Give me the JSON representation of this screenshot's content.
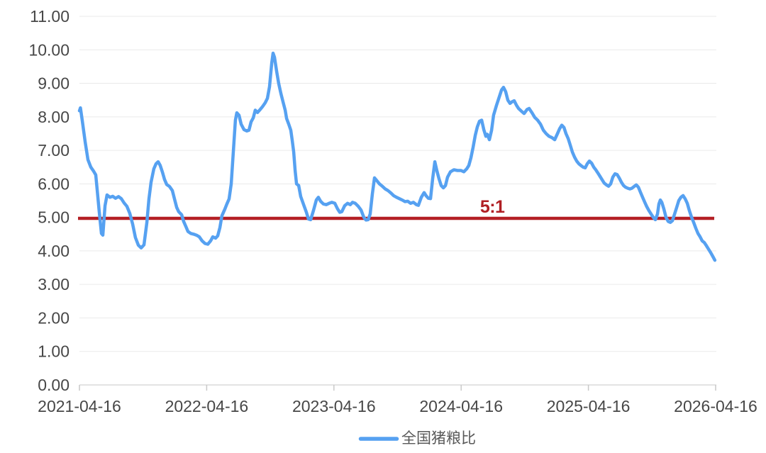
{
  "chart_data": {
    "type": "line",
    "title": "",
    "legend_position": "bottom-center",
    "grid": "horizontal",
    "x_axis": {
      "min": 0,
      "max": 5,
      "tick_positions": [
        0,
        1,
        2,
        3,
        4,
        5
      ],
      "tick_labels": [
        "2021-04-16",
        "2022-04-16",
        "2023-04-16",
        "2024-04-16",
        "2025-04-16",
        "2026-04-16"
      ]
    },
    "y_axis": {
      "min": 0,
      "max": 11,
      "step": 1,
      "tick_labels": [
        "0.00",
        "1.00",
        "2.00",
        "3.00",
        "4.00",
        "5.00",
        "6.00",
        "7.00",
        "8.00",
        "9.00",
        "10.00",
        "11.00"
      ]
    },
    "threshold_line": {
      "label": "5:1",
      "value": 4.97,
      "color": "#B42025",
      "label_color": "#B01F24",
      "label_x_years": 3.245
    },
    "series": [
      {
        "name": "全国猪粮比",
        "color": "#56A1F1",
        "points": [
          [
            0.0,
            8.18
          ],
          [
            0.008,
            8.27
          ],
          [
            0.022,
            7.9
          ],
          [
            0.045,
            7.25
          ],
          [
            0.067,
            6.72
          ],
          [
            0.089,
            6.5
          ],
          [
            0.111,
            6.38
          ],
          [
            0.128,
            6.27
          ],
          [
            0.139,
            5.85
          ],
          [
            0.156,
            5.15
          ],
          [
            0.173,
            4.52
          ],
          [
            0.184,
            4.47
          ],
          [
            0.201,
            5.35
          ],
          [
            0.217,
            5.67
          ],
          [
            0.24,
            5.6
          ],
          [
            0.262,
            5.63
          ],
          [
            0.284,
            5.57
          ],
          [
            0.307,
            5.62
          ],
          [
            0.329,
            5.56
          ],
          [
            0.351,
            5.43
          ],
          [
            0.373,
            5.33
          ],
          [
            0.396,
            5.12
          ],
          [
            0.418,
            4.8
          ],
          [
            0.44,
            4.4
          ],
          [
            0.463,
            4.17
          ],
          [
            0.485,
            4.09
          ],
          [
            0.507,
            4.18
          ],
          [
            0.53,
            4.85
          ],
          [
            0.546,
            5.55
          ],
          [
            0.563,
            6.05
          ],
          [
            0.585,
            6.45
          ],
          [
            0.602,
            6.6
          ],
          [
            0.619,
            6.66
          ],
          [
            0.635,
            6.55
          ],
          [
            0.652,
            6.35
          ],
          [
            0.669,
            6.13
          ],
          [
            0.686,
            5.98
          ],
          [
            0.708,
            5.92
          ],
          [
            0.73,
            5.8
          ],
          [
            0.747,
            5.55
          ],
          [
            0.764,
            5.3
          ],
          [
            0.78,
            5.17
          ],
          [
            0.803,
            5.08
          ],
          [
            0.819,
            4.88
          ],
          [
            0.836,
            4.73
          ],
          [
            0.853,
            4.58
          ],
          [
            0.875,
            4.52
          ],
          [
            0.897,
            4.5
          ],
          [
            0.92,
            4.47
          ],
          [
            0.942,
            4.42
          ],
          [
            0.964,
            4.3
          ],
          [
            0.987,
            4.22
          ],
          [
            1.009,
            4.2
          ],
          [
            1.031,
            4.3
          ],
          [
            1.048,
            4.42
          ],
          [
            1.07,
            4.38
          ],
          [
            1.087,
            4.45
          ],
          [
            1.104,
            4.7
          ],
          [
            1.12,
            5.05
          ],
          [
            1.143,
            5.25
          ],
          [
            1.159,
            5.4
          ],
          [
            1.176,
            5.55
          ],
          [
            1.193,
            6.0
          ],
          [
            1.21,
            7.0
          ],
          [
            1.226,
            7.9
          ],
          [
            1.237,
            8.12
          ],
          [
            1.254,
            8.05
          ],
          [
            1.271,
            7.78
          ],
          [
            1.293,
            7.62
          ],
          [
            1.315,
            7.58
          ],
          [
            1.332,
            7.6
          ],
          [
            1.349,
            7.85
          ],
          [
            1.366,
            7.97
          ],
          [
            1.382,
            8.2
          ],
          [
            1.399,
            8.13
          ],
          [
            1.416,
            8.2
          ],
          [
            1.438,
            8.3
          ],
          [
            1.46,
            8.42
          ],
          [
            1.477,
            8.55
          ],
          [
            1.494,
            8.9
          ],
          [
            1.511,
            9.6
          ],
          [
            1.522,
            9.9
          ],
          [
            1.533,
            9.78
          ],
          [
            1.55,
            9.35
          ],
          [
            1.566,
            9.0
          ],
          [
            1.583,
            8.7
          ],
          [
            1.6,
            8.45
          ],
          [
            1.617,
            8.2
          ],
          [
            1.628,
            7.95
          ],
          [
            1.645,
            7.78
          ],
          [
            1.661,
            7.6
          ],
          [
            1.672,
            7.3
          ],
          [
            1.684,
            6.95
          ],
          [
            1.695,
            6.4
          ],
          [
            1.706,
            6.0
          ],
          [
            1.723,
            5.95
          ],
          [
            1.739,
            5.62
          ],
          [
            1.762,
            5.38
          ],
          [
            1.784,
            5.15
          ],
          [
            1.8,
            4.95
          ],
          [
            1.817,
            4.93
          ],
          [
            1.839,
            5.2
          ],
          [
            1.862,
            5.52
          ],
          [
            1.878,
            5.6
          ],
          [
            1.895,
            5.48
          ],
          [
            1.917,
            5.4
          ],
          [
            1.94,
            5.38
          ],
          [
            1.962,
            5.42
          ],
          [
            1.984,
            5.45
          ],
          [
            2.007,
            5.42
          ],
          [
            2.029,
            5.25
          ],
          [
            2.046,
            5.15
          ],
          [
            2.062,
            5.17
          ],
          [
            2.085,
            5.35
          ],
          [
            2.107,
            5.42
          ],
          [
            2.129,
            5.38
          ],
          [
            2.146,
            5.45
          ],
          [
            2.168,
            5.42
          ],
          [
            2.191,
            5.33
          ],
          [
            2.213,
            5.22
          ],
          [
            2.235,
            5.0
          ],
          [
            2.252,
            4.92
          ],
          [
            2.269,
            4.93
          ],
          [
            2.285,
            5.1
          ],
          [
            2.302,
            5.7
          ],
          [
            2.319,
            6.18
          ],
          [
            2.336,
            6.1
          ],
          [
            2.358,
            6.0
          ],
          [
            2.38,
            5.93
          ],
          [
            2.403,
            5.85
          ],
          [
            2.425,
            5.8
          ],
          [
            2.447,
            5.73
          ],
          [
            2.469,
            5.65
          ],
          [
            2.492,
            5.6
          ],
          [
            2.514,
            5.56
          ],
          [
            2.536,
            5.52
          ],
          [
            2.559,
            5.47
          ],
          [
            2.581,
            5.48
          ],
          [
            2.603,
            5.42
          ],
          [
            2.625,
            5.45
          ],
          [
            2.648,
            5.38
          ],
          [
            2.664,
            5.36
          ],
          [
            2.687,
            5.6
          ],
          [
            2.709,
            5.74
          ],
          [
            2.726,
            5.64
          ],
          [
            2.742,
            5.57
          ],
          [
            2.759,
            5.56
          ],
          [
            2.776,
            6.15
          ],
          [
            2.793,
            6.66
          ],
          [
            2.809,
            6.4
          ],
          [
            2.826,
            6.15
          ],
          [
            2.843,
            5.95
          ],
          [
            2.86,
            5.88
          ],
          [
            2.877,
            5.95
          ],
          [
            2.893,
            6.2
          ],
          [
            2.916,
            6.36
          ],
          [
            2.943,
            6.42
          ],
          [
            2.971,
            6.4
          ],
          [
            2.999,
            6.4
          ],
          [
            3.021,
            6.36
          ],
          [
            3.044,
            6.45
          ],
          [
            3.06,
            6.55
          ],
          [
            3.077,
            6.78
          ],
          [
            3.094,
            7.1
          ],
          [
            3.111,
            7.45
          ],
          [
            3.127,
            7.7
          ],
          [
            3.144,
            7.87
          ],
          [
            3.161,
            7.9
          ],
          [
            3.178,
            7.62
          ],
          [
            3.194,
            7.42
          ],
          [
            3.205,
            7.48
          ],
          [
            3.222,
            7.32
          ],
          [
            3.239,
            7.6
          ],
          [
            3.255,
            8.05
          ],
          [
            3.278,
            8.35
          ],
          [
            3.3,
            8.6
          ],
          [
            3.317,
            8.8
          ],
          [
            3.333,
            8.88
          ],
          [
            3.35,
            8.75
          ],
          [
            3.367,
            8.5
          ],
          [
            3.384,
            8.4
          ],
          [
            3.4,
            8.45
          ],
          [
            3.417,
            8.48
          ],
          [
            3.434,
            8.35
          ],
          [
            3.451,
            8.25
          ],
          [
            3.473,
            8.17
          ],
          [
            3.495,
            8.1
          ],
          [
            3.518,
            8.22
          ],
          [
            3.534,
            8.25
          ],
          [
            3.557,
            8.12
          ],
          [
            3.579,
            7.98
          ],
          [
            3.601,
            7.9
          ],
          [
            3.624,
            7.78
          ],
          [
            3.646,
            7.6
          ],
          [
            3.668,
            7.5
          ],
          [
            3.69,
            7.42
          ],
          [
            3.713,
            7.38
          ],
          [
            3.735,
            7.32
          ],
          [
            3.757,
            7.5
          ],
          [
            3.774,
            7.65
          ],
          [
            3.791,
            7.75
          ],
          [
            3.808,
            7.68
          ],
          [
            3.824,
            7.5
          ],
          [
            3.841,
            7.35
          ],
          [
            3.858,
            7.15
          ],
          [
            3.874,
            6.95
          ],
          [
            3.891,
            6.8
          ],
          [
            3.908,
            6.68
          ],
          [
            3.925,
            6.6
          ],
          [
            3.941,
            6.55
          ],
          [
            3.958,
            6.5
          ],
          [
            3.975,
            6.48
          ],
          [
            3.991,
            6.6
          ],
          [
            4.008,
            6.68
          ],
          [
            4.025,
            6.62
          ],
          [
            4.042,
            6.5
          ],
          [
            4.058,
            6.42
          ],
          [
            4.075,
            6.32
          ],
          [
            4.092,
            6.22
          ],
          [
            4.108,
            6.12
          ],
          [
            4.125,
            6.02
          ],
          [
            4.142,
            5.97
          ],
          [
            4.159,
            5.93
          ],
          [
            4.175,
            6.0
          ],
          [
            4.192,
            6.2
          ],
          [
            4.209,
            6.3
          ],
          [
            4.225,
            6.28
          ],
          [
            4.242,
            6.18
          ],
          [
            4.259,
            6.05
          ],
          [
            4.276,
            5.95
          ],
          [
            4.292,
            5.9
          ],
          [
            4.309,
            5.87
          ],
          [
            4.326,
            5.85
          ],
          [
            4.342,
            5.87
          ],
          [
            4.359,
            5.92
          ],
          [
            4.376,
            5.97
          ],
          [
            4.393,
            5.9
          ],
          [
            4.409,
            5.75
          ],
          [
            4.426,
            5.6
          ],
          [
            4.443,
            5.45
          ],
          [
            4.459,
            5.32
          ],
          [
            4.476,
            5.2
          ],
          [
            4.493,
            5.1
          ],
          [
            4.51,
            5.0
          ],
          [
            4.526,
            4.93
          ],
          [
            4.543,
            5.1
          ],
          [
            4.554,
            5.4
          ],
          [
            4.565,
            5.52
          ],
          [
            4.577,
            5.45
          ],
          [
            4.593,
            5.25
          ],
          [
            4.61,
            5.0
          ],
          [
            4.627,
            4.88
          ],
          [
            4.644,
            4.85
          ],
          [
            4.66,
            4.9
          ],
          [
            4.677,
            5.1
          ],
          [
            4.694,
            5.3
          ],
          [
            4.71,
            5.5
          ],
          [
            4.727,
            5.6
          ],
          [
            4.744,
            5.65
          ],
          [
            4.761,
            5.55
          ],
          [
            4.777,
            5.42
          ],
          [
            4.794,
            5.2
          ],
          [
            4.811,
            5.0
          ],
          [
            4.827,
            4.85
          ],
          [
            4.844,
            4.68
          ],
          [
            4.861,
            4.52
          ],
          [
            4.878,
            4.42
          ],
          [
            4.894,
            4.3
          ],
          [
            4.911,
            4.25
          ],
          [
            4.928,
            4.15
          ],
          [
            4.944,
            4.05
          ],
          [
            4.961,
            3.95
          ],
          [
            4.978,
            3.83
          ],
          [
            4.994,
            3.72
          ]
        ]
      }
    ]
  },
  "legend": {
    "series_label": "全国猪粮比"
  },
  "colors": {
    "background": "#FFFFFF",
    "series_blue": "#56A1F1",
    "threshold_red": "#B42025",
    "gridline": "#EAEAEA",
    "axis_line": "#DADADA",
    "tick": "#C9C9C9",
    "axis_text": "#474747",
    "legend_text": "#595959"
  }
}
